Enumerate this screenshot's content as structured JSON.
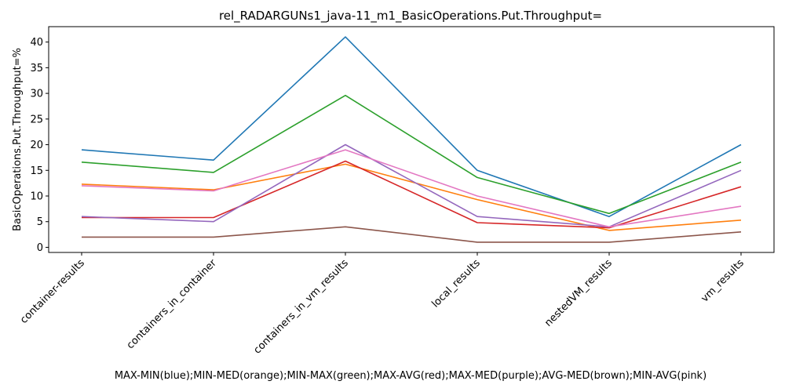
{
  "chart_data": {
    "type": "line",
    "title": "rel_RADARGUNs1_java-11_m1_BasicOperations.Put.Throughput=",
    "xlabel": "MAX-MIN(blue);MIN-MED(orange);MIN-MAX(green);MAX-AVG(red);MAX-MED(purple);AVG-MED(brown);MIN-AVG(pink)",
    "ylabel": "BasicOperations.Put.Throughput=%",
    "categories": [
      "container-results",
      "containers_in_container",
      "containers_in_vm_results",
      "local_results",
      "nestedVM_results",
      "vm_results"
    ],
    "ylim": [
      -1,
      43
    ],
    "yticks": [
      0,
      5,
      10,
      15,
      20,
      25,
      30,
      35,
      40
    ],
    "grid": false,
    "series": [
      {
        "color": "#1f77b4",
        "values": [
          19,
          17,
          41,
          15,
          6,
          20
        ]
      },
      {
        "color": "#ff7f0e",
        "values": [
          12.3,
          11.2,
          16.2,
          9.3,
          3.3,
          5.3
        ]
      },
      {
        "color": "#2ca02c",
        "values": [
          16.6,
          14.6,
          29.6,
          13.6,
          6.6,
          16.6
        ]
      },
      {
        "color": "#d62728",
        "values": [
          5.8,
          5.8,
          16.8,
          4.8,
          3.8,
          11.8
        ]
      },
      {
        "color": "#9467bd",
        "values": [
          6,
          5,
          20,
          6,
          4,
          15
        ]
      },
      {
        "color": "#8c564b",
        "values": [
          2,
          2,
          4,
          1,
          1,
          3
        ]
      },
      {
        "color": "#e377c2",
        "values": [
          12,
          11,
          19,
          10,
          4,
          8
        ]
      }
    ]
  }
}
